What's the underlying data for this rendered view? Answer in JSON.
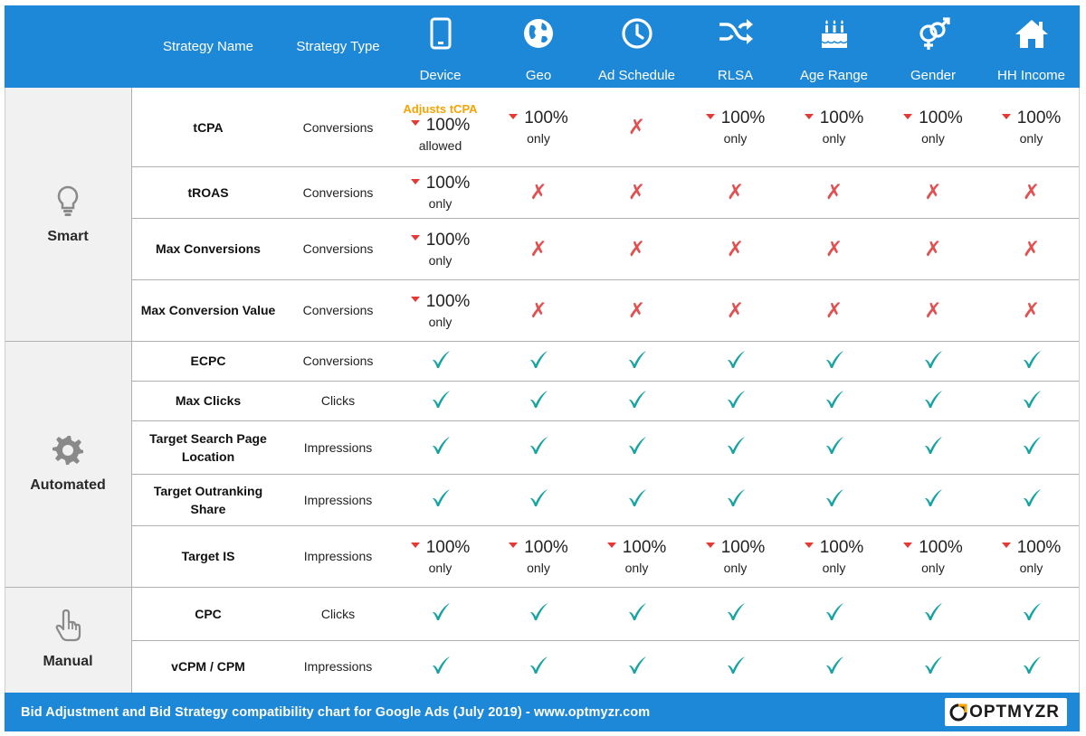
{
  "header": {
    "columns": [
      "Strategy Name",
      "Strategy Type",
      "Device",
      "Geo",
      "Ad Schedule",
      "RLSA",
      "Age Range",
      "Gender",
      "HH  Income"
    ],
    "icons": [
      "smartphone-icon",
      "globe-icon",
      "clock-icon",
      "shuffle-icon",
      "birthday-cake-icon",
      "gender-icon",
      "home-icon"
    ]
  },
  "groups": [
    {
      "label": "Smart",
      "icon": "lightbulb-icon"
    },
    {
      "label": "Automated",
      "icon": "gear-icon"
    },
    {
      "label": "Manual",
      "icon": "hand-pointer-icon"
    }
  ],
  "rows": [
    {
      "group": "Smart",
      "name": "tCPA",
      "type": "Conversions",
      "cells": [
        {
          "kind": "pct",
          "value": "100%",
          "sub": "allowed",
          "note": "Adjusts tCPA"
        },
        {
          "kind": "pct",
          "value": "100%",
          "sub": "only"
        },
        {
          "kind": "x"
        },
        {
          "kind": "pct",
          "value": "100%",
          "sub": "only"
        },
        {
          "kind": "pct",
          "value": "100%",
          "sub": "only"
        },
        {
          "kind": "pct",
          "value": "100%",
          "sub": "only"
        },
        {
          "kind": "pct",
          "value": "100%",
          "sub": "only"
        }
      ]
    },
    {
      "group": "Smart",
      "name": "tROAS",
      "type": "Conversions",
      "cells": [
        {
          "kind": "pct",
          "value": "100%",
          "sub": "only"
        },
        {
          "kind": "x"
        },
        {
          "kind": "x"
        },
        {
          "kind": "x"
        },
        {
          "kind": "x"
        },
        {
          "kind": "x"
        },
        {
          "kind": "x"
        }
      ]
    },
    {
      "group": "Smart",
      "name": "Max Conversions",
      "type": "Conversions",
      "cells": [
        {
          "kind": "pct",
          "value": "100%",
          "sub": "only"
        },
        {
          "kind": "x"
        },
        {
          "kind": "x"
        },
        {
          "kind": "x"
        },
        {
          "kind": "x"
        },
        {
          "kind": "x"
        },
        {
          "kind": "x"
        }
      ]
    },
    {
      "group": "Smart",
      "name": "Max Conversion Value",
      "type": "Conversions",
      "cells": [
        {
          "kind": "pct",
          "value": "100%",
          "sub": "only"
        },
        {
          "kind": "x"
        },
        {
          "kind": "x"
        },
        {
          "kind": "x"
        },
        {
          "kind": "x"
        },
        {
          "kind": "x"
        },
        {
          "kind": "x"
        }
      ]
    },
    {
      "group": "Automated",
      "name": "ECPC",
      "type": "Conversions",
      "cells": [
        {
          "kind": "check"
        },
        {
          "kind": "check"
        },
        {
          "kind": "check"
        },
        {
          "kind": "check"
        },
        {
          "kind": "check"
        },
        {
          "kind": "check"
        },
        {
          "kind": "check"
        }
      ]
    },
    {
      "group": "Automated",
      "name": "Max Clicks",
      "type": "Clicks",
      "cells": [
        {
          "kind": "check"
        },
        {
          "kind": "check"
        },
        {
          "kind": "check"
        },
        {
          "kind": "check"
        },
        {
          "kind": "check"
        },
        {
          "kind": "check"
        },
        {
          "kind": "check"
        }
      ]
    },
    {
      "group": "Automated",
      "name": "Target Search Page Location",
      "type": "Impressions",
      "cells": [
        {
          "kind": "check"
        },
        {
          "kind": "check"
        },
        {
          "kind": "check"
        },
        {
          "kind": "check"
        },
        {
          "kind": "check"
        },
        {
          "kind": "check"
        },
        {
          "kind": "check"
        }
      ]
    },
    {
      "group": "Automated",
      "name": "Target Outranking Share",
      "type": "Impressions",
      "cells": [
        {
          "kind": "check"
        },
        {
          "kind": "check"
        },
        {
          "kind": "check"
        },
        {
          "kind": "check"
        },
        {
          "kind": "check"
        },
        {
          "kind": "check"
        },
        {
          "kind": "check"
        }
      ]
    },
    {
      "group": "Automated",
      "name": "Target IS",
      "type": "Impressions",
      "cells": [
        {
          "kind": "pct",
          "value": "100%",
          "sub": "only"
        },
        {
          "kind": "pct",
          "value": "100%",
          "sub": "only"
        },
        {
          "kind": "pct",
          "value": "100%",
          "sub": "only"
        },
        {
          "kind": "pct",
          "value": "100%",
          "sub": "only"
        },
        {
          "kind": "pct",
          "value": "100%",
          "sub": "only"
        },
        {
          "kind": "pct",
          "value": "100%",
          "sub": "only"
        },
        {
          "kind": "pct",
          "value": "100%",
          "sub": "only"
        }
      ]
    },
    {
      "group": "Manual",
      "name": "CPC",
      "type": "Clicks",
      "cells": [
        {
          "kind": "check"
        },
        {
          "kind": "check"
        },
        {
          "kind": "check"
        },
        {
          "kind": "check"
        },
        {
          "kind": "check"
        },
        {
          "kind": "check"
        },
        {
          "kind": "check"
        }
      ]
    },
    {
      "group": "Manual",
      "name": "vCPM / CPM",
      "type": "Impressions",
      "cells": [
        {
          "kind": "check"
        },
        {
          "kind": "check"
        },
        {
          "kind": "check"
        },
        {
          "kind": "check"
        },
        {
          "kind": "check"
        },
        {
          "kind": "check"
        },
        {
          "kind": "check"
        }
      ]
    }
  ],
  "symbols": {
    "x": "✗"
  },
  "colors": {
    "header_bg": "#1e88d8",
    "check": "#1aa3a3",
    "cross": "#e05252",
    "arrow": "#e53935",
    "note": "#f6a400",
    "group_bg": "#f1f1f1"
  },
  "footer": {
    "text": "Bid Adjustment and Bid Strategy compatibility chart for Google Ads (July 2019) - www.optmyzr.com",
    "logo": "OPTMYZR"
  }
}
